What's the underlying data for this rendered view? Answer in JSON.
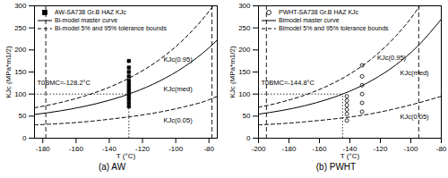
{
  "chart_data": [
    {
      "type": "line",
      "caption": "(a) AW",
      "x_label": "T (°C)",
      "y_label": "KJc (MPa*m1/2)",
      "xlim": [
        -185,
        -75
      ],
      "xticks": [
        -180,
        -160,
        -140,
        -120,
        -100,
        -80
      ],
      "ylim": [
        0,
        300
      ],
      "yticks": [
        0,
        50,
        100,
        150,
        200,
        250,
        300
      ],
      "grid": false,
      "legend": "top-left",
      "t0": -128.2,
      "t0_label": "T0BMC=-128.2°C",
      "ref_y": 100,
      "bound_lines": [
        -178.2,
        -78.2
      ],
      "series": [
        {
          "name": "AW-SA738 Gr.B HAZ KJc",
          "type": "scatter",
          "marker": "square",
          "color": "#000000",
          "x": [
            -128.2,
            -128.2,
            -128.2,
            -128.2,
            -128.2,
            -128.2,
            -128.2,
            -128.2,
            -128.2,
            -128.2,
            -128.2,
            -128.2,
            -128.2
          ],
          "values": [
            72,
            80,
            88,
            95,
            102,
            108,
            115,
            122,
            130,
            140,
            150,
            160,
            175
          ]
        },
        {
          "name": "Bi-model master curve",
          "type": "line",
          "line_style": "solid",
          "color": "#000000",
          "x": [
            -185,
            -170,
            -155,
            -140,
            -125,
            -110,
            -95,
            -80,
            -75
          ],
          "lines": [
            {
              "label": "KJc(med)",
              "values": [
                53.8,
                61.6,
                72.1,
                85.9,
                104.4,
                128.9,
                161.5,
                204.9,
                222.4
              ]
            }
          ]
        },
        {
          "name": "Bi-model 5% and 95% tolerance bounds",
          "type": "line",
          "line_style": "dashed",
          "color": "#000000",
          "x": [
            -185,
            -170,
            -155,
            -140,
            -125,
            -110,
            -95,
            -80,
            -75
          ],
          "lines": [
            {
              "label": "KJc(0.95)",
              "values": [
                68.9,
                80.3,
                95.4,
                115.4,
                142.2,
                177.6,
                224.8,
                287.6,
                312.9
              ]
            },
            {
              "label": "KJc(0.05)",
              "values": [
                30,
                33,
                37,
                43,
                50,
                59,
                71,
                87,
                95
              ]
            }
          ]
        }
      ]
    },
    {
      "type": "line",
      "caption": "(b) PWHT",
      "x_label": "T (°C)",
      "y_label": "KJc (MPa*m1/2)",
      "xlim": [
        -200,
        -80
      ],
      "xticks": [
        -200,
        -180,
        -160,
        -140,
        -120,
        -100,
        -80
      ],
      "ylim": [
        0,
        300
      ],
      "yticks": [
        0,
        50,
        100,
        150,
        200,
        250,
        300
      ],
      "grid": false,
      "legend": "top-left",
      "t0": -144.8,
      "t0_label": "T0BMC=-144.8°C",
      "ref_y": 100,
      "bound_lines": [
        -194.8,
        -94.8
      ],
      "series": [
        {
          "name": "PWHT-SA738 Gr.B HAZ KJc",
          "type": "scatter",
          "marker": "circle-open",
          "color": "#000000",
          "x": [
            -142,
            -142,
            -142,
            -142,
            -142,
            -142,
            -132,
            -132,
            -132,
            -132,
            -132,
            -132
          ],
          "values": [
            40,
            55,
            65,
            75,
            85,
            95,
            60,
            80,
            100,
            120,
            140,
            165
          ]
        },
        {
          "name": "Bimodel master curve",
          "type": "line",
          "line_style": "solid",
          "color": "#000000",
          "x": [
            -200,
            -185,
            -170,
            -155,
            -140,
            -125,
            -110,
            -95,
            -80
          ],
          "lines": [
            {
              "label": "KJc(med)",
              "values": [
                54.5,
                62.6,
                73.3,
                87.7,
                106.7,
                132.0,
                165.6,
                210.3,
                269.8
              ]
            }
          ]
        },
        {
          "name": "Bimodel 5% and 95% tolerance bounds",
          "type": "line",
          "line_style": "dashed",
          "color": "#000000",
          "x": [
            -200,
            -185,
            -170,
            -155,
            -140,
            -125,
            -110,
            -95,
            -80
          ],
          "lines": [
            {
              "label": "KJc(0.95)",
              "values": [
                70.0,
                81.7,
                97.2,
                118.0,
                145.4,
                182.1,
                230.7,
                295.4,
                381.0
              ]
            },
            {
              "label": "KJc(0.05)",
              "values": [
                30,
                33,
                37,
                42,
                48,
                56,
                67,
                80,
                95
              ]
            }
          ]
        }
      ]
    }
  ]
}
